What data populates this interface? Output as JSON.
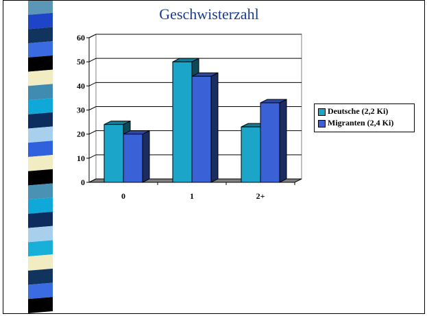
{
  "chart_data": {
    "type": "bar",
    "title": "Geschwisterzahl",
    "categories": [
      "0",
      "1",
      "2+"
    ],
    "series": [
      {
        "name": "Deutsche (2,2 Ki)",
        "values": [
          24,
          50,
          23
        ],
        "color": "#1ba5c8"
      },
      {
        "name": "Migranten (2,4 Ki)",
        "values": [
          20,
          44,
          33
        ],
        "color": "#3a62d6"
      }
    ],
    "ylim": [
      0,
      60
    ],
    "yticks": [
      "0",
      "10",
      "20",
      "30",
      "40",
      "50",
      "60"
    ],
    "grid": true,
    "three_d": true,
    "legend_position": "right"
  },
  "decor": {
    "stripe_colors": [
      "#5b96b6",
      "#1e45c8",
      "#10345e",
      "#3a6be0",
      "#000000",
      "#f2ecc2",
      "#3f8cb0",
      "#10a8d8",
      "#0d2d5e",
      "#a8d0ec",
      "#2f60de",
      "#f2ecc2",
      "#000000",
      "#4a92b4",
      "#10a8d8",
      "#0d2d5e",
      "#a8d0ec",
      "#18b0d8",
      "#f2ecc2",
      "#10345e",
      "#3a6be0",
      "#000000"
    ]
  }
}
